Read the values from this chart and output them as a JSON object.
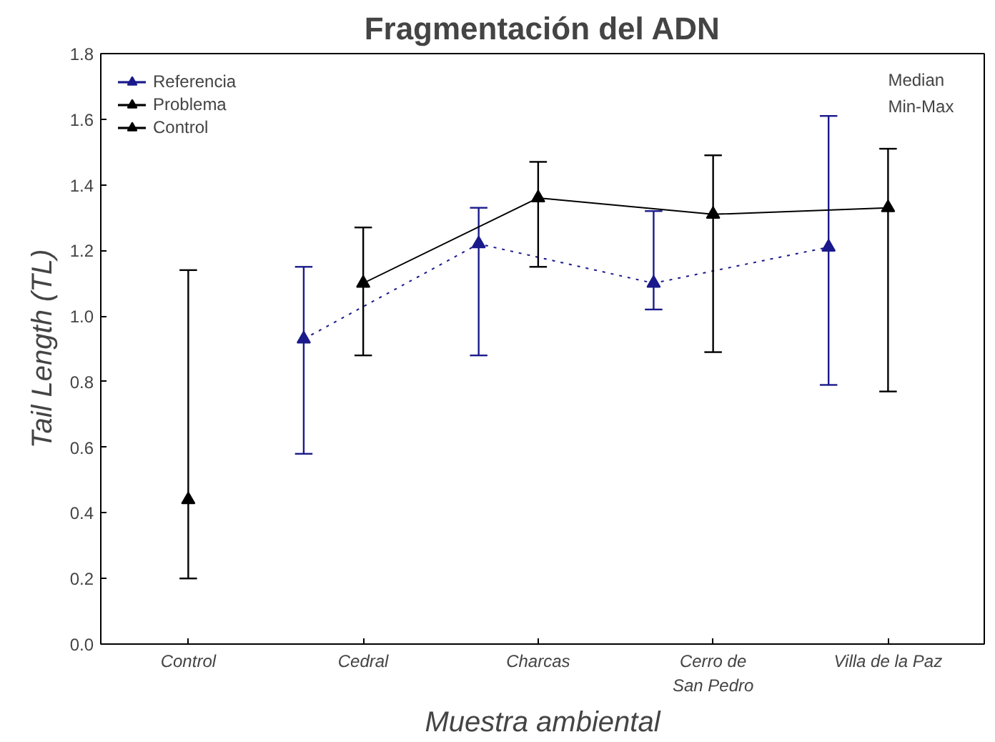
{
  "chart_data": {
    "type": "line",
    "title": "Fragmentación del ADN",
    "xlabel": "Muestra ambiental",
    "ylabel": "Tail Length (TL)",
    "categories": [
      "Control",
      "Cedral",
      "Charcas",
      "Cerro de\nSan Pedro",
      "Villa de la Paz"
    ],
    "series": [
      {
        "name": "Referencia",
        "color": "#1a1a8c",
        "line_style": "dotted",
        "values": [
          null,
          0.93,
          1.22,
          1.1,
          1.21
        ],
        "errors": [
          null,
          [
            0.58,
            1.15
          ],
          [
            0.88,
            1.33
          ],
          [
            1.02,
            1.32
          ],
          [
            0.79,
            1.61
          ]
        ]
      },
      {
        "name": "Problema",
        "color": "#000000",
        "line_style": "solid",
        "values": [
          null,
          1.1,
          1.36,
          1.31,
          1.33
        ],
        "errors": [
          null,
          [
            0.88,
            1.27
          ],
          [
            1.15,
            1.47
          ],
          [
            0.89,
            1.49
          ],
          [
            0.77,
            1.51
          ]
        ]
      },
      {
        "name": "Control",
        "color": "#000000",
        "line_style": "solid",
        "values": [
          0.44,
          null,
          null,
          null,
          null
        ],
        "errors": [
          [
            0.2,
            1.14
          ],
          null,
          null,
          null,
          null
        ]
      }
    ],
    "ylim": [
      0,
      1.8
    ],
    "yticks": [
      {
        "value": 0,
        "label": "0.0"
      },
      0.2,
      0.4,
      0.6,
      0.8,
      {
        "value": 1,
        "label": "1.0"
      },
      1.2,
      1.4,
      1.6,
      1.8
    ],
    "marker": "triangle",
    "grid": false,
    "legend": "top left",
    "annotations": [
      "Median",
      "Min-Max"
    ]
  }
}
